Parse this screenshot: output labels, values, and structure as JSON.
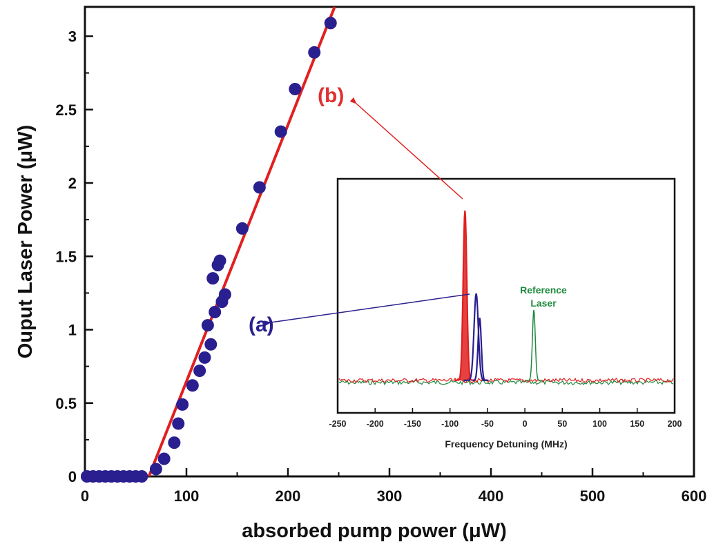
{
  "chart_data": [
    {
      "type": "scatter",
      "xlabel": "absorbed pump power (μW)",
      "ylabel": "Ouput Laser Power (μW)",
      "xlim": [
        0,
        600
      ],
      "ylim": [
        0,
        3.2
      ],
      "x_ticks": [
        "0",
        "100",
        "200",
        "300",
        "400",
        "500",
        "600"
      ],
      "y_ticks": [
        "0",
        "0.5",
        "1",
        "1.5",
        "2",
        "2.5",
        "3"
      ],
      "grid": false,
      "series": [
        {
          "color": "#2a1f8f",
          "x": [
            2,
            8,
            14,
            20,
            26,
            32,
            38,
            44,
            50,
            56,
            70,
            78,
            88,
            92,
            96,
            106,
            113,
            118,
            121,
            124,
            126,
            128,
            131,
            133,
            135,
            138,
            155,
            172,
            193,
            207,
            226,
            242
          ],
          "y": [
            0,
            0,
            0,
            0,
            0,
            0,
            0,
            0,
            0,
            0,
            0.05,
            0.12,
            0.23,
            0.36,
            0.49,
            0.62,
            0.72,
            0.81,
            1.03,
            0.9,
            1.35,
            1.12,
            1.44,
            1.47,
            1.19,
            1.24,
            1.69,
            1.97,
            2.35,
            2.64,
            2.89,
            3.09
          ]
        },
        {
          "color": "#e02020",
          "line": true,
          "x": [
            63,
            246
          ],
          "y": [
            0,
            3.2
          ]
        }
      ],
      "annotations": [
        {
          "text": "(a)",
          "color": "#2a1f8f"
        },
        {
          "text": "(b)",
          "color": "#e03030"
        }
      ]
    },
    {
      "type": "line",
      "xlabel": "Frequency Detuning (MHz)",
      "xlim": [
        -250,
        200
      ],
      "x_ticks": [
        "-250",
        "-200",
        "-150",
        "-100",
        "-50",
        "0",
        "50",
        "100",
        "150",
        "200"
      ],
      "grid": false,
      "series": [
        {
          "color": "#e02020",
          "peak_x": -80,
          "peak_height": 0.82
        },
        {
          "color": "#2a1f8f",
          "peak_x": -65,
          "peak_height": 0.42
        },
        {
          "name": "Reference Laser",
          "color": "#1e8a3e",
          "peak_x": 12,
          "peak_height": 0.34
        }
      ]
    }
  ],
  "colors": {
    "blue": "#2a1f8f",
    "red": "#e02020",
    "green": "#1e8a3e"
  }
}
